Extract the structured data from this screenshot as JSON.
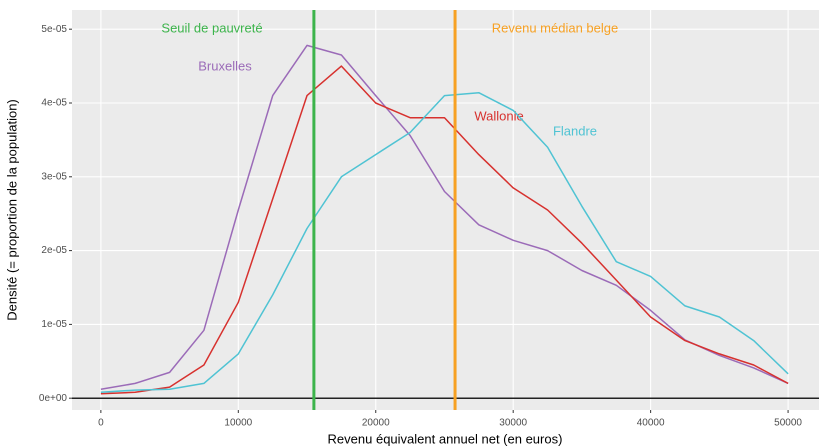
{
  "chart_data": {
    "type": "line",
    "x_label": "Revenu équivalent annuel net (en euros)",
    "y_label": "Densité (= proportion de la population)",
    "x": [
      0,
      2500,
      5000,
      7500,
      10000,
      12500,
      15000,
      17500,
      20000,
      22500,
      25000,
      27500,
      30000,
      32500,
      35000,
      37500,
      40000,
      42500,
      45000,
      47500,
      50000
    ],
    "series": [
      {
        "name": "Bruxelles",
        "color": "#9b6bb8",
        "values": [
          1.2e-06,
          2e-06,
          3.5e-06,
          9.2e-06,
          2.55e-05,
          4.1e-05,
          4.78e-05,
          4.65e-05,
          4.1e-05,
          3.56e-05,
          2.8e-05,
          2.35e-05,
          2.14e-05,
          2e-05,
          1.73e-05,
          1.53e-05,
          1.19e-05,
          7.9e-06,
          5.8e-06,
          4.1e-06,
          2e-06
        ]
      },
      {
        "name": "Wallonie",
        "color": "#d7312e",
        "values": [
          6e-07,
          8e-07,
          1.5e-06,
          4.5e-06,
          1.3e-05,
          2.7e-05,
          4.1e-05,
          4.5e-05,
          4e-05,
          3.8e-05,
          3.8e-05,
          3.3e-05,
          2.85e-05,
          2.55e-05,
          2.1e-05,
          1.6e-05,
          1.1e-05,
          7.8e-06,
          6e-06,
          4.5e-06,
          2e-06
        ]
      },
      {
        "name": "Flandre",
        "color": "#4fc3d3",
        "values": [
          8e-07,
          1.1e-06,
          1.2e-06,
          2e-06,
          6e-06,
          1.4e-05,
          2.3e-05,
          3e-05,
          3.3e-05,
          3.6e-05,
          4.1e-05,
          4.14e-05,
          3.9e-05,
          3.4e-05,
          2.6e-05,
          1.85e-05,
          1.65e-05,
          1.25e-05,
          1.1e-05,
          7.8e-06,
          3.3e-06
        ]
      }
    ],
    "vlines": [
      {
        "label": "Seuil de pauvreté",
        "value": 15500,
        "color": "#3cb44b"
      },
      {
        "label": "Revenu médian belge",
        "value": 25770,
        "color": "#f7a123"
      }
    ],
    "hline": 0,
    "xlim": [
      -2100,
      52250
    ],
    "ylim": [
      -1.6e-06,
      5.26e-05
    ],
    "xticks": [
      0,
      10000,
      20000,
      30000,
      40000,
      50000
    ],
    "yticks": [
      {
        "value": 0,
        "label": "0e+00"
      },
      {
        "value": 1e-05,
        "label": "1e-05"
      },
      {
        "value": 2e-05,
        "label": "2e-05"
      },
      {
        "value": 3e-05,
        "label": "3e-05"
      },
      {
        "value": 4e-05,
        "label": "4e-05"
      },
      {
        "value": 5e-05,
        "label": "5e-05"
      }
    ],
    "grid": true
  }
}
